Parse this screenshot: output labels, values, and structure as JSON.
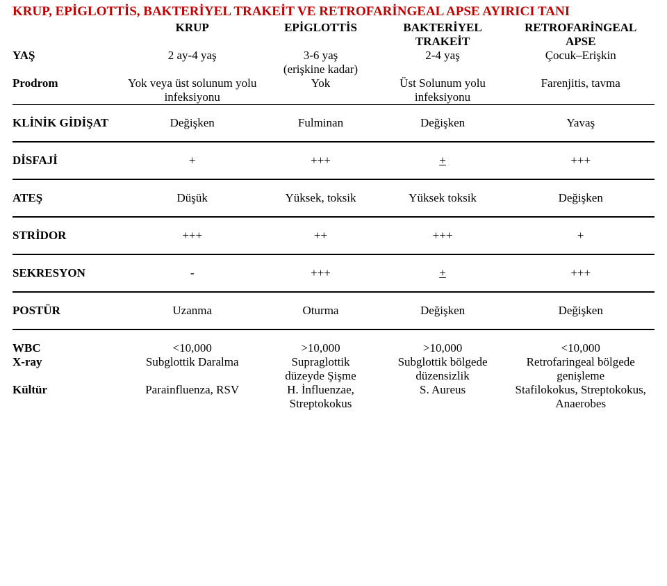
{
  "title": "KRUP, EPİGLOTTİS, BAKTERİYEL TRAKEİT VE RETROFARİNGEAL APSE AYIRICI TANI",
  "headers": {
    "c1a": "KRUP",
    "c2a": "EPİGLOTTİS",
    "c3a": "BAKTERİYEL",
    "c3b": "TRAKEİT",
    "c4a": "RETROFARİNGEAL",
    "c4b": "APSE"
  },
  "rows": {
    "yas": {
      "label": "YAŞ",
      "c1": "2 ay-4 yaş",
      "c2a": "3-6 yaş",
      "c2b": "(erişkine kadar)",
      "c3": "2-4 yaş",
      "c4": "Çocuk–Erişkin"
    },
    "prodrom": {
      "label": "Prodrom",
      "c1a": "Yok veya üst solunum yolu",
      "c1b": "infeksiyonu",
      "c2": "Yok",
      "c3a": "Üst Solunum yolu",
      "c3b": "infeksiyonu",
      "c4": "Farenjitis, tavma"
    },
    "klinik": {
      "label": "KLİNİK GİDİŞAT",
      "c1": "Değişken",
      "c2": "Fulminan",
      "c3": "Değişken",
      "c4": "Yavaş"
    },
    "disfaji": {
      "label": "DİSFAJİ",
      "c1": "+",
      "c2": "+++",
      "c3": "+",
      "c4": "+++"
    },
    "ates": {
      "label": "ATEŞ",
      "c1": "Düşük",
      "c2": "Yüksek, toksik",
      "c3": "Yüksek toksik",
      "c4": "Değişken"
    },
    "stridor": {
      "label": "STRİDOR",
      "c1": "+++",
      "c2": "++",
      "c3": "+++",
      "c4": "+"
    },
    "sekresyon": {
      "label": "SEKRESYON",
      "c1": "-",
      "c2": "+++",
      "c3": "+",
      "c4": "+++"
    },
    "postur": {
      "label": "POSTÜR",
      "c1": "Uzanma",
      "c2": "Oturma",
      "c3": "Değişken",
      "c4": "Değişken"
    },
    "wbc": {
      "label": "WBC",
      "c1": "<10,000",
      "c2": ">10,000",
      "c3": ">10,000",
      "c4": "<10,000"
    },
    "xray": {
      "label": "X-ray",
      "c1": "Subglottik Daralma",
      "c2a": "Supraglottik",
      "c2b": "düzeyde Şişme",
      "c3a": "Subglottik bölgede",
      "c3b": "düzensizlik",
      "c4a": "Retrofaringeal bölgede",
      "c4b": "genişleme"
    },
    "kultur": {
      "label": "Kültür",
      "c1": "Parainfluenza, RSV",
      "c2a": "H. İnfluenzae,",
      "c2b": "Streptokokus",
      "c3": "S. Aureus",
      "c4a": "Stafilokokus, Streptokokus,",
      "c4b": "Anaerobes"
    }
  }
}
